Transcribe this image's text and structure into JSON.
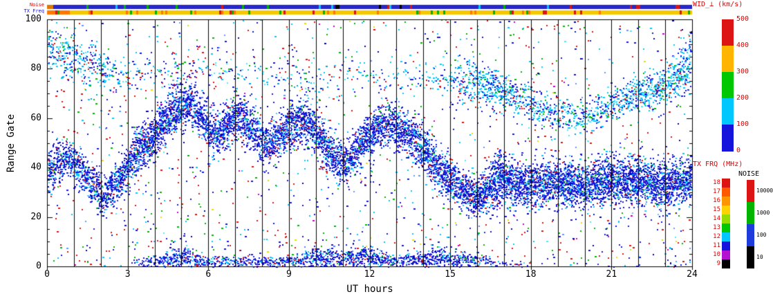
{
  "chart_data": {
    "type": "heatmap",
    "xlabel": "UT hours",
    "ylabel": "Range Gate",
    "xlim": [
      0,
      24
    ],
    "ylim": [
      0,
      100
    ],
    "xticks": [
      0,
      3,
      6,
      9,
      12,
      15,
      18,
      21,
      24
    ],
    "yticks": [
      0,
      20,
      40,
      60,
      80,
      100
    ],
    "y_minor_every": 5,
    "grid": "vertical black line at every UT hour",
    "value_scale": {
      "name": "WID_⊥",
      "units": "km/s",
      "min": 0,
      "max": 500
    },
    "strips": [
      {
        "name": "noise",
        "label": "Noise",
        "label_color": "#dc0000",
        "base_color": "#2828c8",
        "lead_color": "#e07800",
        "lead_hours": 0.2,
        "speck_colors": [
          "#00b400",
          "#dc1414",
          "#00c8ff",
          "#000000"
        ],
        "speck_chance": 0.09
      },
      {
        "name": "tx-freq",
        "label": "TX Freq",
        "label_color": "#1414dc",
        "base_color": "#f5c800",
        "lead_color": "#ff7800",
        "lead_hours": 0.8,
        "speck_colors": [
          "#dc1414",
          "#ff7800",
          "#00b400"
        ],
        "speck_chance": 0.12
      }
    ],
    "colorbars": [
      {
        "name": "wid",
        "title": "WID_⊥ (km/s)",
        "text_color": "#dc0000",
        "tick_labels": [
          "500",
          "400",
          "300",
          "200",
          "100",
          "0"
        ],
        "segments_top_to_bottom": [
          "#dc1414",
          "#ffb400",
          "#00c800",
          "#00c8ff",
          "#1414dc"
        ]
      },
      {
        "name": "txfrq",
        "title": "TX FRQ (MHz)",
        "text_color": "#dc0000",
        "tick_labels": [
          "18",
          "17",
          "16",
          "15",
          "14",
          "13",
          "12",
          "11",
          "10",
          "9"
        ],
        "segments_top_to_bottom": [
          "#dc1414",
          "#ff5a00",
          "#ff9600",
          "#ffd200",
          "#96dc00",
          "#00c800",
          "#00c8ff",
          "#1414dc",
          "#b414d2",
          "#000000"
        ]
      },
      {
        "name": "noise",
        "title": "NOISE",
        "text_color": "#000000",
        "tick_labels": [
          "10000",
          "1000",
          "100",
          "10"
        ],
        "segments_top_to_bottom": [
          "#dc1414",
          "#00b400",
          "#1e3cdc",
          "#000000"
        ]
      }
    ],
    "palette": {
      "blue_core": [
        [
          "#1414dc",
          0.5
        ],
        [
          "#2828e6",
          0.12
        ],
        [
          "#0000aa",
          0.1
        ],
        [
          "#00c8ff",
          0.12
        ],
        [
          "#50c8ff",
          0.05
        ],
        [
          "#6478ff",
          0.04
        ],
        [
          "#00b400",
          0.03
        ],
        [
          "#dc1414",
          0.04
        ]
      ],
      "cyan_mix": [
        [
          "#00c8ff",
          0.32
        ],
        [
          "#1414dc",
          0.22
        ],
        [
          "#50e6ff",
          0.14
        ],
        [
          "#2828e6",
          0.1
        ],
        [
          "#00a0e6",
          0.1
        ],
        [
          "#00b400",
          0.05
        ],
        [
          "#dc1414",
          0.07
        ]
      ]
    },
    "bands": [
      {
        "name": "main-ionospheric-band",
        "color_profile": "blue_core",
        "points": [
          [
            0,
            38,
            7,
            0.85
          ],
          [
            0.7,
            44,
            6,
            0.8
          ],
          [
            1.2,
            40,
            7,
            0.7
          ],
          [
            2,
            29,
            6,
            0.8
          ],
          [
            2.6,
            34,
            7,
            0.8
          ],
          [
            3.2,
            44,
            8,
            0.8
          ],
          [
            4,
            54,
            8,
            0.85
          ],
          [
            4.8,
            64,
            8,
            0.9
          ],
          [
            5.3,
            66,
            7,
            0.9
          ],
          [
            5.8,
            59,
            7,
            0.8
          ],
          [
            6.3,
            53,
            7,
            0.85
          ],
          [
            7,
            62,
            7,
            0.9
          ],
          [
            7.6,
            56,
            7,
            0.8
          ],
          [
            8.1,
            49,
            7,
            0.8
          ],
          [
            8.7,
            53,
            7,
            0.85
          ],
          [
            9.4,
            60,
            8,
            0.9
          ],
          [
            10,
            55,
            8,
            0.85
          ],
          [
            10.6,
            44,
            8,
            0.8
          ],
          [
            11.1,
            42,
            7,
            0.8
          ],
          [
            11.7,
            50,
            7,
            0.85
          ],
          [
            12.3,
            56,
            7,
            0.9
          ],
          [
            12.9,
            57,
            7,
            0.85
          ],
          [
            13.4,
            54,
            7,
            0.85
          ],
          [
            14,
            47,
            8,
            0.85
          ],
          [
            14.6,
            39,
            8,
            0.85
          ],
          [
            15.2,
            33,
            7,
            0.9
          ],
          [
            16,
            28,
            7,
            0.95
          ],
          [
            16.8,
            36,
            9,
            0.95
          ],
          [
            17.5,
            33,
            8,
            0.95
          ],
          [
            18.2,
            34,
            8,
            0.9
          ],
          [
            19,
            34,
            8,
            0.95
          ],
          [
            20,
            33,
            8,
            0.95
          ],
          [
            21,
            35,
            8,
            0.9
          ],
          [
            22,
            35,
            8,
            0.95
          ],
          [
            23,
            33,
            8,
            0.95
          ],
          [
            24,
            35,
            8,
            0.9
          ]
        ]
      },
      {
        "name": "upper-scatter-band",
        "color_profile": "cyan_mix",
        "points": [
          [
            0,
            88,
            9,
            0.3
          ],
          [
            1,
            85,
            8,
            0.3
          ],
          [
            2,
            80,
            8,
            0.22
          ],
          [
            3,
            76,
            6,
            0.1
          ],
          [
            4,
            78,
            6,
            0.06
          ],
          [
            6,
            80,
            6,
            0.05
          ],
          [
            8,
            78,
            6,
            0.05
          ],
          [
            10,
            76,
            6,
            0.05
          ],
          [
            12,
            78,
            6,
            0.05
          ],
          [
            14,
            76,
            6,
            0.06
          ],
          [
            15,
            74,
            7,
            0.15
          ],
          [
            15.8,
            75,
            8,
            0.35
          ],
          [
            16.5,
            72,
            7,
            0.5
          ],
          [
            17.2,
            70,
            7,
            0.4
          ],
          [
            18,
            66,
            6,
            0.35
          ],
          [
            19,
            62,
            6,
            0.3
          ],
          [
            19.8,
            60,
            5,
            0.3
          ],
          [
            20.5,
            63,
            6,
            0.35
          ],
          [
            21.3,
            67,
            6,
            0.4
          ],
          [
            22,
            70,
            7,
            0.45
          ],
          [
            23,
            73,
            7,
            0.45
          ],
          [
            23.7,
            80,
            9,
            0.5
          ],
          [
            24,
            86,
            8,
            0.5
          ]
        ]
      },
      {
        "name": "near-range-band",
        "color_profile": "blue_core",
        "points": [
          [
            0,
            1,
            1,
            0.08
          ],
          [
            3,
            1,
            1,
            0.12
          ],
          [
            3.5,
            2,
            2,
            0.3
          ],
          [
            4,
            2,
            2,
            0.55
          ],
          [
            4.5,
            3,
            3,
            0.65
          ],
          [
            5,
            4,
            4,
            0.65
          ],
          [
            5.5,
            3,
            3,
            0.6
          ],
          [
            6,
            2,
            2,
            0.6
          ],
          [
            7,
            2,
            2,
            0.65
          ],
          [
            8,
            2,
            2,
            0.6
          ],
          [
            9,
            2,
            2,
            0.65
          ],
          [
            9.5,
            3,
            3,
            0.65
          ],
          [
            10,
            4,
            4,
            0.7
          ],
          [
            10.5,
            4,
            4,
            0.65
          ],
          [
            11,
            3,
            3,
            0.65
          ],
          [
            11.5,
            4,
            4,
            0.7
          ],
          [
            12,
            4,
            4,
            0.7
          ],
          [
            12.5,
            3,
            3,
            0.65
          ],
          [
            13,
            2,
            2,
            0.6
          ],
          [
            14,
            3,
            3,
            0.65
          ],
          [
            14.5,
            4,
            4,
            0.65
          ],
          [
            15,
            3,
            3,
            0.65
          ],
          [
            15.5,
            3,
            3,
            0.65
          ],
          [
            16,
            3,
            3,
            0.6
          ],
          [
            16.5,
            2,
            2,
            0.45
          ],
          [
            17,
            1,
            1,
            0.22
          ],
          [
            18,
            1,
            1,
            0.18
          ],
          [
            19,
            1,
            1,
            0.18
          ],
          [
            20,
            1,
            1,
            0.18
          ],
          [
            21,
            1,
            1,
            0.18
          ],
          [
            22,
            1,
            1,
            0.18
          ],
          [
            23,
            1,
            1,
            0.18
          ],
          [
            24,
            1,
            1,
            0.18
          ]
        ]
      }
    ],
    "background_noise": {
      "count": 1500,
      "palette": [
        [
          "#1414dc",
          0.27
        ],
        [
          "#00c8ff",
          0.16
        ],
        [
          "#dc1414",
          0.24
        ],
        [
          "#00b400",
          0.13
        ],
        [
          "#0000aa",
          0.07
        ],
        [
          "#e6dc00",
          0.03
        ],
        [
          "#6496ff",
          0.05
        ],
        [
          "#c800c8",
          0.03
        ],
        [
          "#50e6ff",
          0.02
        ]
      ]
    }
  }
}
